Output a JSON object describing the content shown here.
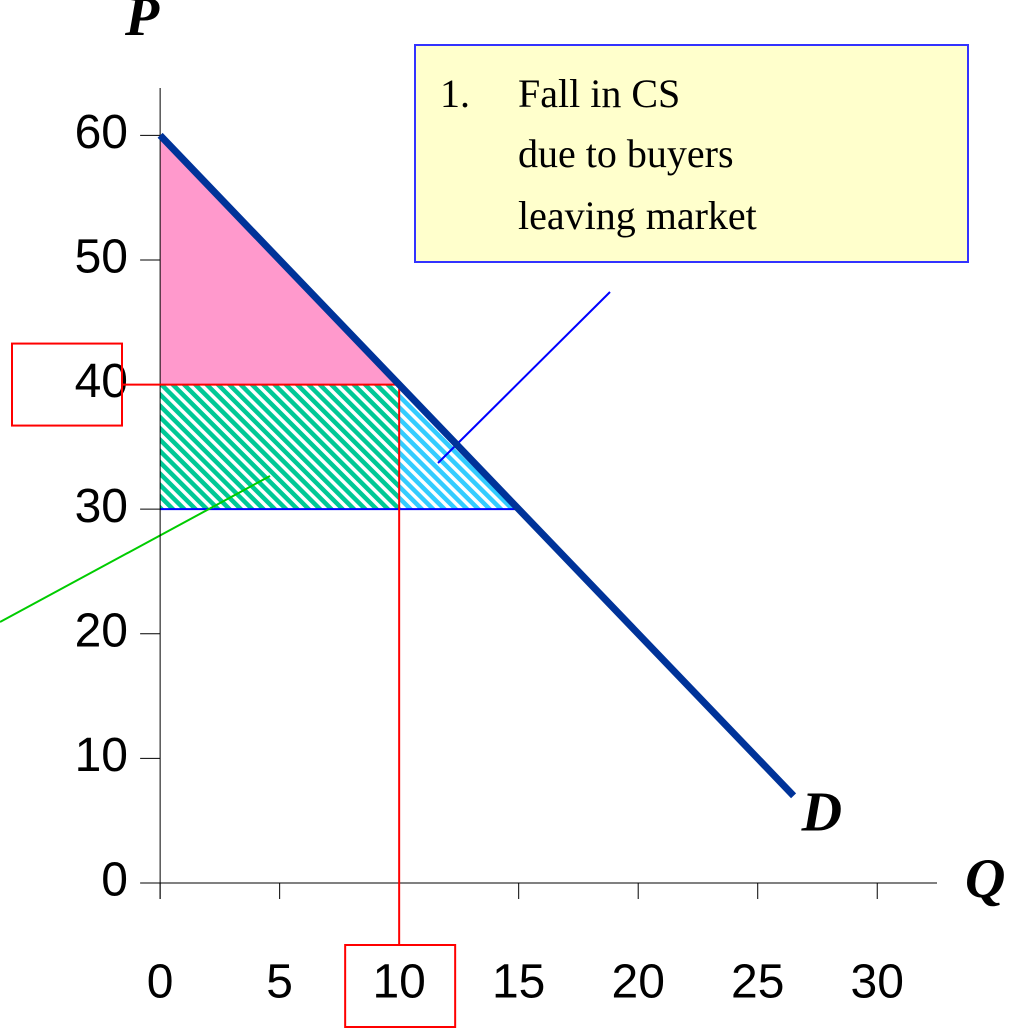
{
  "chart_data": {
    "type": "line",
    "x_label": "Q",
    "y_label": "P",
    "xlim": [
      -0.8,
      32.5
    ],
    "ylim": [
      0,
      63.8
    ],
    "xticks": [
      0,
      5,
      10,
      15,
      20,
      25,
      30
    ],
    "yticks": [
      0,
      10,
      20,
      30,
      40,
      50,
      60
    ],
    "series": [
      {
        "name": "D",
        "color": "#003399",
        "x": [
          0,
          26.5
        ],
        "values": [
          60,
          7
        ]
      }
    ],
    "buyer_price": 40,
    "seller_price": 30,
    "tax_quantity": 10,
    "free_quantity": 15,
    "highlight_x_tick": 2,
    "highlight_y_tick": 4,
    "annotation": {
      "number": "1.",
      "lines": [
        "Fall in CS",
        "due to buyers",
        "leaving market"
      ]
    }
  }
}
